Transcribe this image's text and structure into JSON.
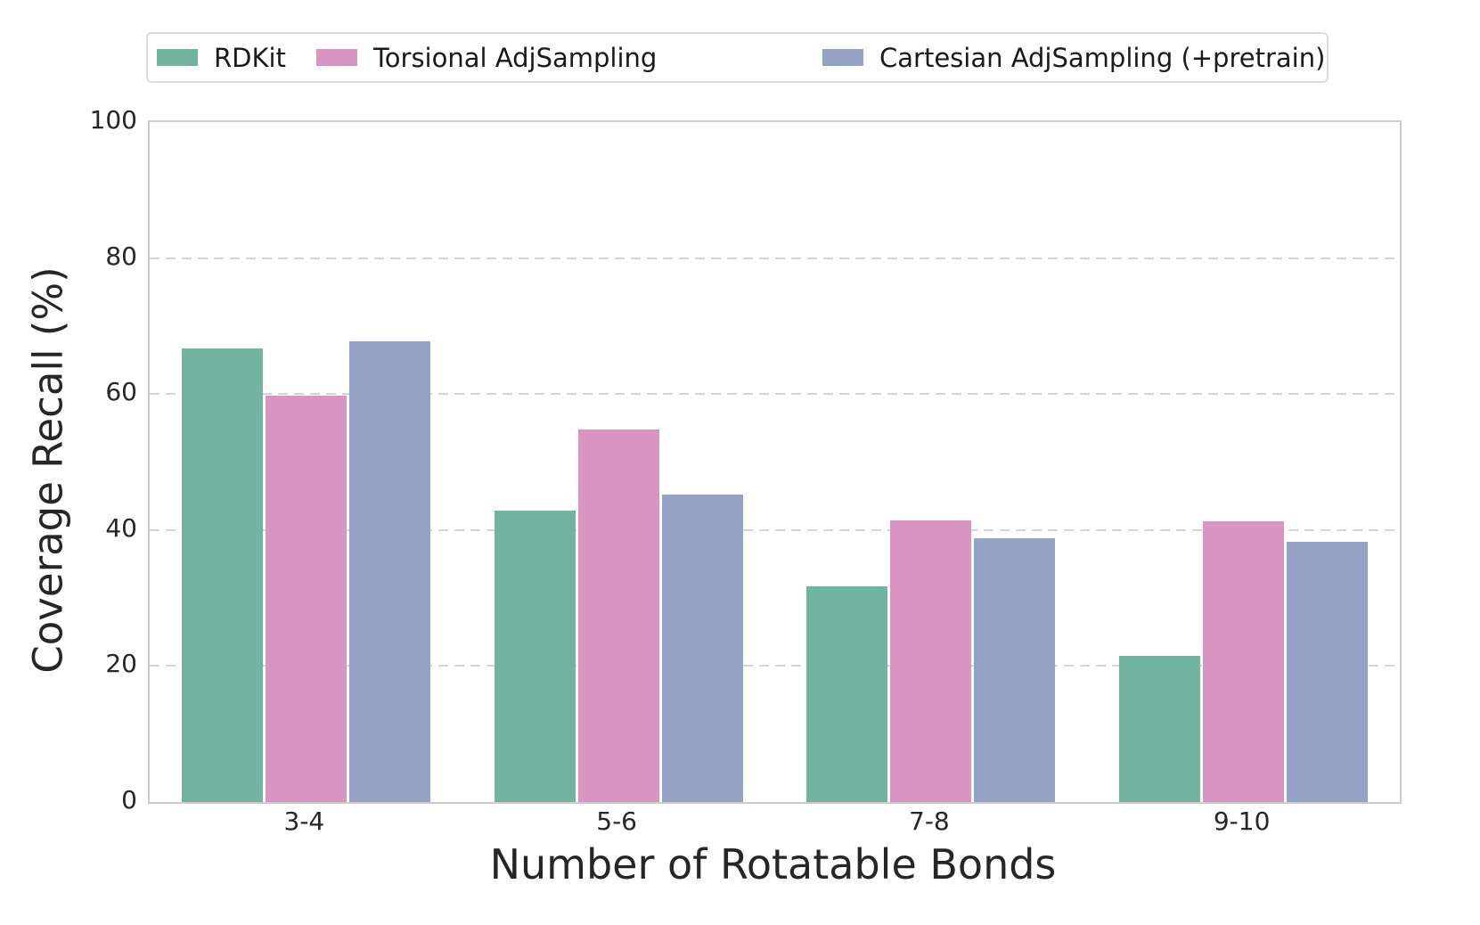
{
  "chart_data": {
    "type": "bar",
    "title": "",
    "categories": [
      "3-4",
      "5-6",
      "7-8",
      "9-10"
    ],
    "series": [
      {
        "name": "RDKit",
        "color": "#71b5a0",
        "values": [
          66.7,
          42.9,
          31.7,
          21.5
        ]
      },
      {
        "name": "Torsional AdjSampling",
        "color": "#d995c1",
        "values": [
          59.8,
          54.8,
          41.4,
          41.3
        ]
      },
      {
        "name": "Cartesian AdjSampling (+pretrain)",
        "color": "#93a2c5",
        "values": [
          67.8,
          45.2,
          38.8,
          38.3
        ]
      }
    ],
    "xlabel": "Number of Rotatable Bonds",
    "ylabel": "Coverage Recall (%)",
    "ylim": [
      0,
      100
    ],
    "yticks": [
      0,
      20,
      40,
      60,
      80,
      100
    ],
    "grid": "horizontal dashed gridlines at 20, 40, 60, 80",
    "legend_position": "top, horizontal, framed box"
  },
  "colors": {
    "background": "#ffffff",
    "spine": "#cccccc",
    "gridline": "#d4d4d4",
    "text": "#262626",
    "legend_border": "#dcdcdc"
  }
}
